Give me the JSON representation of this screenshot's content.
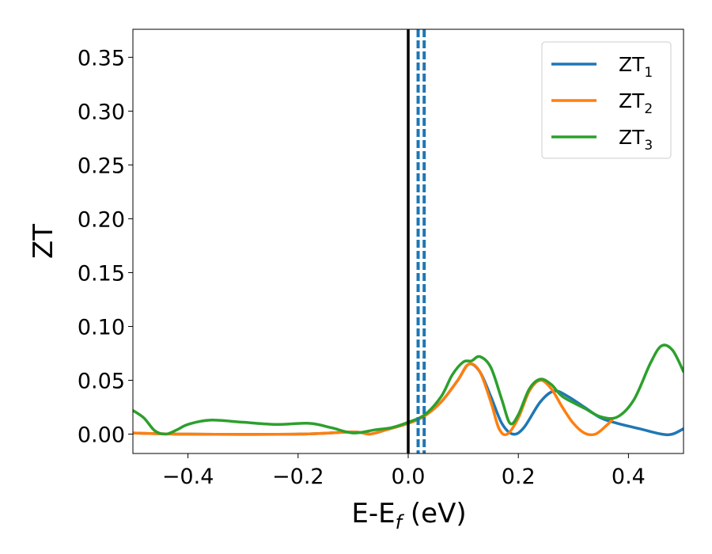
{
  "chart_data": {
    "type": "line",
    "xlabel": {
      "main": "E-E",
      "sub": "f",
      "unit": " (eV)"
    },
    "ylabel": "ZT",
    "xlim": [
      -0.5,
      0.5
    ],
    "ylim": [
      -0.018,
      0.376
    ],
    "x_ticks": [
      -0.4,
      -0.2,
      0.0,
      0.2,
      0.4
    ],
    "x_tick_labels": [
      "−0.4",
      "−0.2",
      "0.0",
      "0.2",
      "0.4"
    ],
    "y_ticks": [
      0.0,
      0.05,
      0.1,
      0.15,
      0.2,
      0.25,
      0.3,
      0.35
    ],
    "y_tick_labels": [
      "0.00",
      "0.05",
      "0.10",
      "0.15",
      "0.20",
      "0.25",
      "0.30",
      "0.35"
    ],
    "grid": false,
    "legend_position": "top-right",
    "series": [
      {
        "name": "ZT",
        "name_sub": "1",
        "color": "#1f77b4",
        "points": [
          [
            -0.5,
            0.001
          ],
          [
            -0.4,
            0.0
          ],
          [
            -0.2,
            0.0
          ],
          [
            -0.1,
            0.002
          ],
          [
            -0.07,
            0.0
          ],
          [
            -0.04,
            0.004
          ],
          [
            0.0,
            0.01
          ],
          [
            0.03,
            0.017
          ],
          [
            0.06,
            0.03
          ],
          [
            0.09,
            0.05
          ],
          [
            0.11,
            0.065
          ],
          [
            0.13,
            0.058
          ],
          [
            0.15,
            0.035
          ],
          [
            0.17,
            0.01
          ],
          [
            0.19,
            0.0
          ],
          [
            0.21,
            0.006
          ],
          [
            0.24,
            0.03
          ],
          [
            0.265,
            0.04
          ],
          [
            0.29,
            0.035
          ],
          [
            0.32,
            0.025
          ],
          [
            0.35,
            0.015
          ],
          [
            0.38,
            0.01
          ],
          [
            0.42,
            0.005
          ],
          [
            0.46,
            0.0
          ],
          [
            0.48,
            0.0
          ],
          [
            0.5,
            0.005
          ]
        ]
      },
      {
        "name": "ZT",
        "name_sub": "2",
        "color": "#ff7f0e",
        "points": [
          [
            -0.5,
            0.001
          ],
          [
            -0.4,
            0.0
          ],
          [
            -0.2,
            0.0
          ],
          [
            -0.1,
            0.002
          ],
          [
            -0.07,
            0.0
          ],
          [
            -0.04,
            0.004
          ],
          [
            0.0,
            0.01
          ],
          [
            0.03,
            0.017
          ],
          [
            0.06,
            0.03
          ],
          [
            0.09,
            0.05
          ],
          [
            0.11,
            0.065
          ],
          [
            0.13,
            0.058
          ],
          [
            0.15,
            0.03
          ],
          [
            0.165,
            0.005
          ],
          [
            0.18,
            0.0
          ],
          [
            0.2,
            0.015
          ],
          [
            0.22,
            0.04
          ],
          [
            0.24,
            0.05
          ],
          [
            0.26,
            0.042
          ],
          [
            0.28,
            0.025
          ],
          [
            0.3,
            0.01
          ],
          [
            0.32,
            0.001
          ],
          [
            0.34,
            0.0
          ],
          [
            0.36,
            0.008
          ],
          [
            0.37,
            0.013
          ]
        ]
      },
      {
        "name": "ZT",
        "name_sub": "3",
        "color": "#2ca02c",
        "points": [
          [
            -0.5,
            0.022
          ],
          [
            -0.48,
            0.015
          ],
          [
            -0.46,
            0.003
          ],
          [
            -0.44,
            0.0
          ],
          [
            -0.42,
            0.004
          ],
          [
            -0.4,
            0.009
          ],
          [
            -0.36,
            0.013
          ],
          [
            -0.3,
            0.011
          ],
          [
            -0.24,
            0.009
          ],
          [
            -0.18,
            0.01
          ],
          [
            -0.14,
            0.006
          ],
          [
            -0.1,
            0.001
          ],
          [
            -0.06,
            0.004
          ],
          [
            -0.03,
            0.006
          ],
          [
            0.0,
            0.011
          ],
          [
            0.03,
            0.018
          ],
          [
            0.06,
            0.035
          ],
          [
            0.08,
            0.055
          ],
          [
            0.1,
            0.067
          ],
          [
            0.115,
            0.068
          ],
          [
            0.13,
            0.072
          ],
          [
            0.15,
            0.062
          ],
          [
            0.17,
            0.032
          ],
          [
            0.185,
            0.01
          ],
          [
            0.2,
            0.018
          ],
          [
            0.22,
            0.042
          ],
          [
            0.24,
            0.051
          ],
          [
            0.26,
            0.046
          ],
          [
            0.28,
            0.035
          ],
          [
            0.32,
            0.024
          ],
          [
            0.35,
            0.016
          ],
          [
            0.38,
            0.016
          ],
          [
            0.41,
            0.032
          ],
          [
            0.44,
            0.066
          ],
          [
            0.46,
            0.082
          ],
          [
            0.48,
            0.078
          ],
          [
            0.5,
            0.058
          ]
        ]
      }
    ],
    "vertical_lines": [
      {
        "x": 0.0,
        "color": "#000000",
        "style": "solid"
      },
      {
        "x": 0.018,
        "color": "#1f77b4",
        "style": "dashed"
      },
      {
        "x": 0.029,
        "color": "#1f77b4",
        "style": "dashed"
      }
    ]
  }
}
